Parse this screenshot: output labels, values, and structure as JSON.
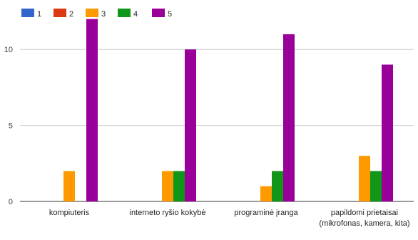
{
  "chart_data": {
    "type": "bar",
    "categories": [
      [
        "kompiuteris"
      ],
      [
        "interneto ryšio kokybė"
      ],
      [
        "programinė įranga"
      ],
      [
        "papildomi prietaisai",
        "(mikrofonas, kamera, kita)"
      ]
    ],
    "series": [
      {
        "name": "1",
        "color": "#3366cc",
        "values": [
          0,
          0,
          0,
          0
        ]
      },
      {
        "name": "2",
        "color": "#dc3912",
        "values": [
          0,
          0,
          0,
          0
        ]
      },
      {
        "name": "3",
        "color": "#ff9900",
        "values": [
          2,
          2,
          1,
          3
        ]
      },
      {
        "name": "4",
        "color": "#109618",
        "values": [
          0,
          2,
          2,
          2
        ]
      },
      {
        "name": "5",
        "color": "#990099",
        "values": [
          12,
          10,
          11,
          9
        ]
      }
    ],
    "yticks": [
      0,
      5,
      10
    ],
    "ylim": [
      0,
      12.5
    ],
    "grid": true,
    "legend_position": "top-left",
    "title": "",
    "xlabel": "",
    "ylabel": ""
  }
}
